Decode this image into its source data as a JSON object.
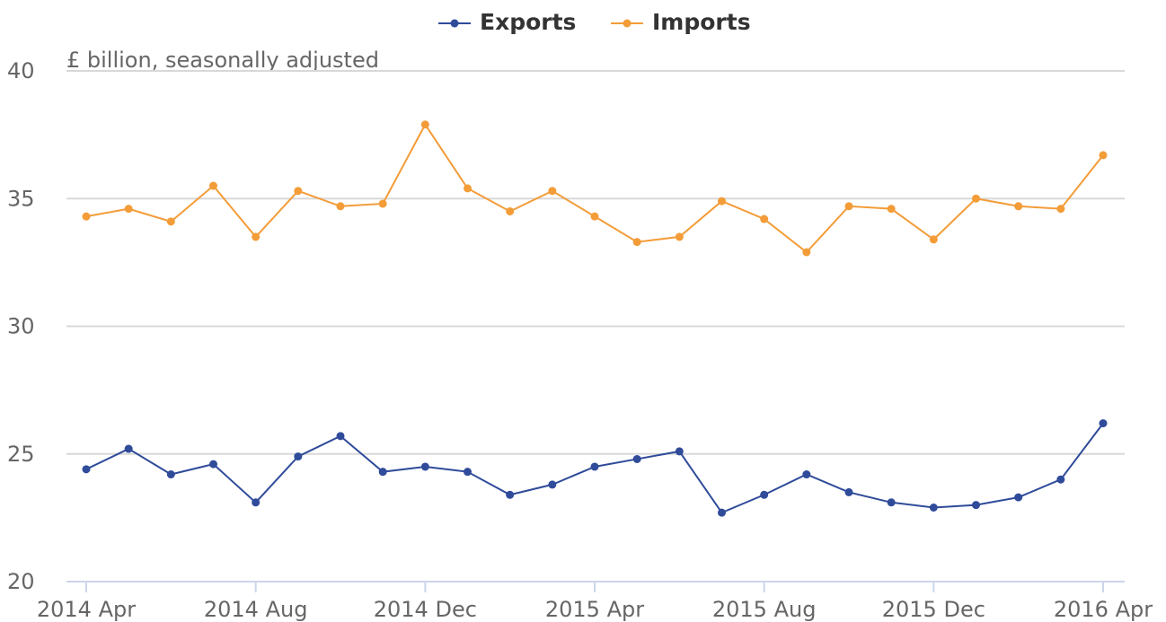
{
  "chart_data": {
    "type": "line",
    "subtitle": "£ billion, seasonally adjusted",
    "categories": [
      "2014 Apr",
      null,
      null,
      null,
      "2014 Aug",
      null,
      null,
      null,
      "2014 Dec",
      null,
      null,
      null,
      "2015 Apr",
      null,
      null,
      null,
      "2015 Aug",
      null,
      null,
      null,
      "2015 Dec",
      null,
      null,
      null,
      "2016 Apr"
    ],
    "series": [
      {
        "name": "Exports",
        "color": "#2f4b9a",
        "values": [
          24.4,
          25.2,
          24.2,
          24.6,
          23.1,
          24.9,
          25.7,
          24.3,
          24.5,
          24.3,
          23.4,
          23.8,
          24.5,
          24.8,
          25.1,
          22.7,
          23.4,
          24.2,
          23.5,
          23.1,
          22.9,
          23.0,
          23.3,
          24.0,
          26.2
        ]
      },
      {
        "name": "Imports",
        "color": "#f39c38",
        "values": [
          34.3,
          34.6,
          34.1,
          35.5,
          33.5,
          35.3,
          34.7,
          34.8,
          37.9,
          35.4,
          34.5,
          35.3,
          34.3,
          33.3,
          33.5,
          34.9,
          34.2,
          32.9,
          34.7,
          34.6,
          33.4,
          35.0,
          34.7,
          34.6,
          36.7
        ]
      }
    ],
    "ylim": [
      20,
      40
    ],
    "yticks": [
      20,
      25,
      30,
      35,
      40
    ],
    "grid": true
  }
}
